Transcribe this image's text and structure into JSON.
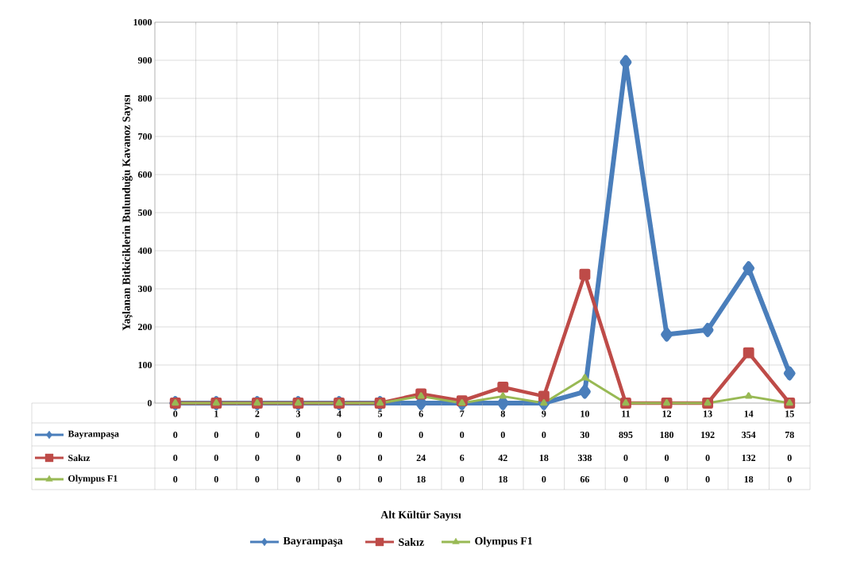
{
  "chart_data": {
    "type": "line",
    "annotations": [
      "Alt Kültür Sayısı"
    ],
    "ylabel": "Yaşlanan Bitkiciklerin Bulunduğu Kavanoz Sayısı",
    "categories": [
      "0",
      "1",
      "2",
      "3",
      "4",
      "5",
      "6",
      "7",
      "8",
      "9",
      "10",
      "11",
      "12",
      "13",
      "14",
      "15"
    ],
    "series": [
      {
        "name": "Bayrampaşa",
        "color": "#4a7ebb",
        "marker": "diamond",
        "values": [
          0,
          0,
          0,
          0,
          0,
          0,
          0,
          0,
          0,
          0,
          30,
          895,
          180,
          192,
          354,
          78
        ]
      },
      {
        "name": "Sakız",
        "color": "#be4b48",
        "marker": "square",
        "values": [
          0,
          0,
          0,
          0,
          0,
          0,
          24,
          6,
          42,
          18,
          338,
          0,
          0,
          0,
          132,
          0
        ]
      },
      {
        "name": "Olympus F1",
        "color": "#98b954",
        "marker": "triangle",
        "values": [
          0,
          0,
          0,
          0,
          0,
          0,
          18,
          0,
          18,
          0,
          66,
          0,
          0,
          0,
          18,
          0
        ]
      }
    ],
    "ylim": [
      0,
      1000
    ],
    "yticks": [
      0,
      100,
      200,
      300,
      400,
      500,
      600,
      700,
      800,
      900,
      1000
    ],
    "grid": true,
    "legend": "bottom",
    "data_labels": true,
    "line_style": "solid"
  }
}
